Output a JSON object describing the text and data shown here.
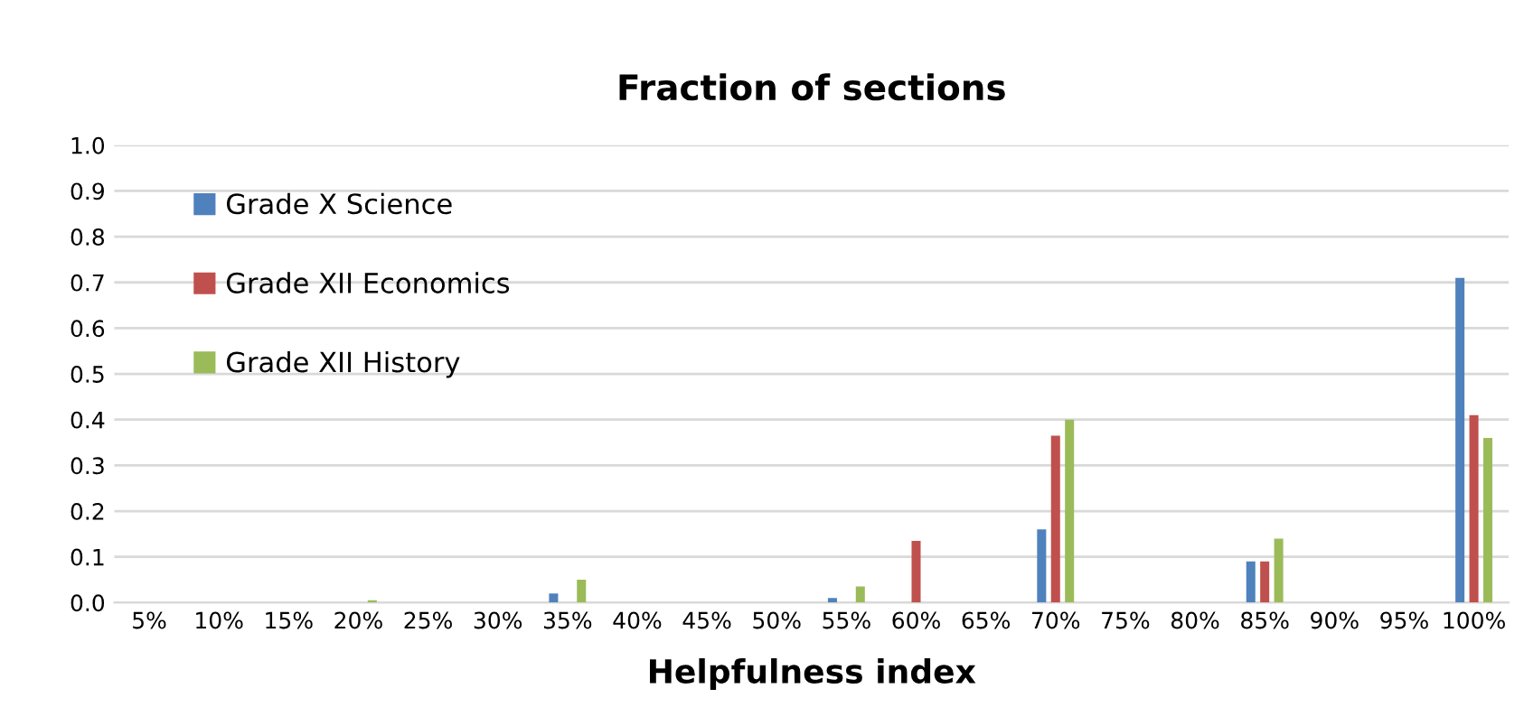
{
  "chart_data": {
    "type": "bar",
    "title": "Fraction of sections",
    "xlabel": "Helpfulness index",
    "categories": [
      "5%",
      "10%",
      "15%",
      "20%",
      "25%",
      "30%",
      "35%",
      "40%",
      "45%",
      "50%",
      "55%",
      "60%",
      "65%",
      "70%",
      "75%",
      "80%",
      "85%",
      "90%",
      "95%",
      "100%"
    ],
    "series": [
      {
        "name": "Grade X Science",
        "color": "#4f81bd",
        "values": [
          0,
          0,
          0,
          0,
          0,
          0,
          0.02,
          0,
          0,
          0,
          0.01,
          0,
          0,
          0.16,
          0,
          0,
          0.09,
          0,
          0,
          0.71
        ]
      },
      {
        "name": "Grade XII Economics",
        "color": "#c0504d",
        "values": [
          0,
          0,
          0,
          0,
          0,
          0,
          0,
          0,
          0,
          0,
          0,
          0.135,
          0,
          0.365,
          0,
          0,
          0.09,
          0,
          0,
          0.41
        ]
      },
      {
        "name": "Grade XII History",
        "color": "#9bbb59",
        "values": [
          0,
          0,
          0,
          0.005,
          0,
          0,
          0.05,
          0,
          0,
          0,
          0.035,
          0,
          0,
          0.4,
          0,
          0,
          0.14,
          0,
          0,
          0.36
        ]
      }
    ],
    "ylim": [
      0,
      1.0
    ],
    "yticks": [
      {
        "value": 0,
        "label": "0.0"
      },
      {
        "value": 0.1,
        "label": "0.1"
      },
      {
        "value": 0.2,
        "label": "0.2"
      },
      {
        "value": 0.3,
        "label": "0.3"
      },
      {
        "value": 0.4,
        "label": "0.4"
      },
      {
        "value": 0.5,
        "label": "0.5"
      },
      {
        "value": 0.6,
        "label": "0.6"
      },
      {
        "value": 0.7,
        "label": "0.7"
      },
      {
        "value": 0.8,
        "label": "0.8"
      },
      {
        "value": 0.9,
        "label": "0.9"
      },
      {
        "value": 1.0,
        "label": "1.0"
      }
    ],
    "grid": "y",
    "legend": "top left"
  }
}
